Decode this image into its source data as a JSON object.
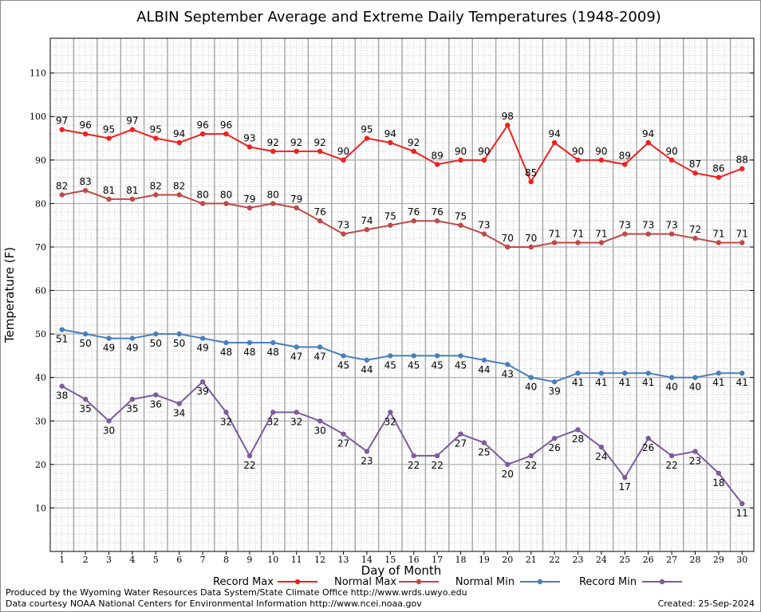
{
  "chart_data": {
    "type": "line",
    "title": "ALBIN September Average and Extreme Daily Temperatures (1948-2009)",
    "xlabel": "Day of Month",
    "ylabel": "Temperature (F)",
    "x": [
      1,
      2,
      3,
      4,
      5,
      6,
      7,
      8,
      9,
      10,
      11,
      12,
      13,
      14,
      15,
      16,
      17,
      18,
      19,
      20,
      21,
      22,
      23,
      24,
      25,
      26,
      27,
      28,
      29,
      30
    ],
    "xlim": [
      0.5,
      30.5
    ],
    "ylim": [
      0,
      118
    ],
    "yticks": [
      10,
      20,
      30,
      40,
      50,
      60,
      70,
      80,
      90,
      100,
      110
    ],
    "grid": true,
    "legend_position": "bottom",
    "series": [
      {
        "name": "Record Max",
        "color": "#ee2020",
        "label_position": "above",
        "values": [
          97,
          96,
          95,
          97,
          95,
          94,
          96,
          96,
          93,
          92,
          92,
          92,
          90,
          95,
          94,
          92,
          89,
          90,
          90,
          98,
          85,
          94,
          90,
          90,
          89,
          94,
          90,
          87,
          86,
          88
        ]
      },
      {
        "name": "Normal Max",
        "color": "#c04848",
        "label_position": "above",
        "values": [
          82,
          83,
          81,
          81,
          82,
          82,
          80,
          80,
          79,
          80,
          79,
          76,
          73,
          74,
          75,
          76,
          76,
          75,
          73,
          70,
          70,
          71,
          71,
          71,
          73,
          73,
          73,
          72,
          71,
          71
        ]
      },
      {
        "name": "Normal Min",
        "color": "#4a7ebb",
        "label_position": "below",
        "values": [
          51,
          50,
          49,
          49,
          50,
          50,
          49,
          48,
          48,
          48,
          47,
          47,
          45,
          44,
          45,
          45,
          45,
          45,
          44,
          43,
          40,
          39,
          41,
          41,
          41,
          41,
          40,
          40,
          41,
          41
        ]
      },
      {
        "name": "Record Min",
        "color": "#7d5a9e",
        "label_position": "below",
        "values": [
          38,
          35,
          30,
          35,
          36,
          34,
          39,
          32,
          22,
          32,
          32,
          30,
          27,
          23,
          32,
          22,
          22,
          27,
          25,
          20,
          22,
          26,
          28,
          24,
          17,
          26,
          22,
          23,
          18,
          11
        ]
      }
    ]
  },
  "footer": {
    "credit_line1": "Produced by the Wyoming Water Resources Data System/State Climate Office http://www.wrds.uwyo.edu",
    "credit_line2": "Data courtesy NOAA National Centers for Environmental Information http://www.ncei.noaa.gov",
    "created": "Created:  25-Sep-2024"
  }
}
